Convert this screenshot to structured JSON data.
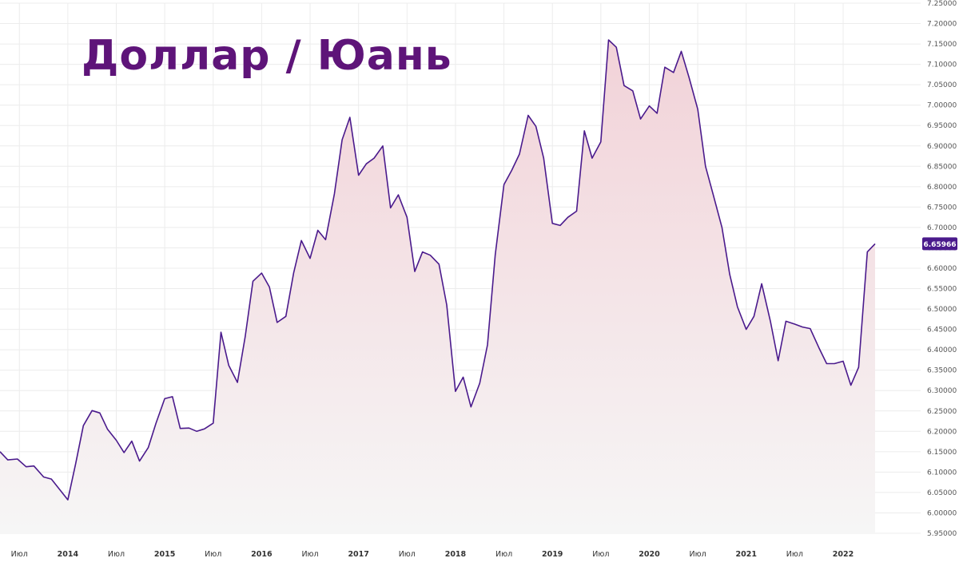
{
  "title": "Доллар / Юань",
  "colors": {
    "title": "#5e1479",
    "line": "#4a1a8c",
    "fill_top": "#f2d2d8",
    "fill_bottom": "#f6f6f6",
    "grid": "#ececec",
    "badge": "#4a1a8c"
  },
  "chart_data": {
    "type": "area",
    "title": "Доллар / Юань",
    "xlabel": "",
    "ylabel": "",
    "ylim": [
      5.95,
      7.25
    ],
    "xlim": [
      2013.3,
      2022.8
    ],
    "grid": true,
    "y_axis_side": "right",
    "y_ticks": [
      "5.95000",
      "6.00000",
      "6.05000",
      "6.10000",
      "6.15000",
      "6.20000",
      "6.25000",
      "6.30000",
      "6.35000",
      "6.40000",
      "6.45000",
      "6.50000",
      "6.55000",
      "6.60000",
      "6.65000",
      "6.70000",
      "6.75000",
      "6.80000",
      "6.85000",
      "6.90000",
      "6.95000",
      "7.00000",
      "7.05000",
      "7.10000",
      "7.15000",
      "7.20000",
      "7.25000"
    ],
    "x_ticks": [
      {
        "label": "Июл",
        "x": 2013.5,
        "year": false
      },
      {
        "label": "2014",
        "x": 2014.0,
        "year": true
      },
      {
        "label": "Июл",
        "x": 2014.5,
        "year": false
      },
      {
        "label": "2015",
        "x": 2015.0,
        "year": true
      },
      {
        "label": "Июл",
        "x": 2015.5,
        "year": false
      },
      {
        "label": "2016",
        "x": 2016.0,
        "year": true
      },
      {
        "label": "Июл",
        "x": 2016.5,
        "year": false
      },
      {
        "label": "2017",
        "x": 2017.0,
        "year": true
      },
      {
        "label": "Июл",
        "x": 2017.5,
        "year": false
      },
      {
        "label": "2018",
        "x": 2018.0,
        "year": true
      },
      {
        "label": "Июл",
        "x": 2018.5,
        "year": false
      },
      {
        "label": "2019",
        "x": 2019.0,
        "year": true
      },
      {
        "label": "Июл",
        "x": 2019.5,
        "year": false
      },
      {
        "label": "2020",
        "x": 2020.0,
        "year": true
      },
      {
        "label": "Июл",
        "x": 2020.5,
        "year": false
      },
      {
        "label": "2021",
        "x": 2021.0,
        "year": true
      },
      {
        "label": "Июл",
        "x": 2021.5,
        "year": false
      },
      {
        "label": "2022",
        "x": 2022.0,
        "year": true
      }
    ],
    "last_value_label": "6.65966",
    "series": [
      {
        "points": [
          [
            2013.3,
            6.15
          ],
          [
            2013.38,
            6.13
          ],
          [
            2013.48,
            6.132
          ],
          [
            2013.57,
            6.113
          ],
          [
            2013.65,
            6.115
          ],
          [
            2013.75,
            6.088
          ],
          [
            2013.83,
            6.083
          ],
          [
            2014.0,
            6.032
          ],
          [
            2014.08,
            6.12
          ],
          [
            2014.16,
            6.214
          ],
          [
            2014.25,
            6.251
          ],
          [
            2014.33,
            6.245
          ],
          [
            2014.41,
            6.205
          ],
          [
            2014.5,
            6.178
          ],
          [
            2014.58,
            6.148
          ],
          [
            2014.66,
            6.176
          ],
          [
            2014.74,
            6.127
          ],
          [
            2014.83,
            6.16
          ],
          [
            2014.91,
            6.22
          ],
          [
            2015.0,
            6.28
          ],
          [
            2015.08,
            6.285
          ],
          [
            2015.16,
            6.207
          ],
          [
            2015.25,
            6.208
          ],
          [
            2015.33,
            6.2
          ],
          [
            2015.41,
            6.206
          ],
          [
            2015.5,
            6.22
          ],
          [
            2015.58,
            6.443
          ],
          [
            2015.66,
            6.362
          ],
          [
            2015.75,
            6.32
          ],
          [
            2015.83,
            6.432
          ],
          [
            2015.91,
            6.568
          ],
          [
            2016.0,
            6.588
          ],
          [
            2016.08,
            6.554
          ],
          [
            2016.16,
            6.467
          ],
          [
            2016.25,
            6.482
          ],
          [
            2016.33,
            6.588
          ],
          [
            2016.41,
            6.668
          ],
          [
            2016.5,
            6.624
          ],
          [
            2016.58,
            6.693
          ],
          [
            2016.66,
            6.67
          ],
          [
            2016.75,
            6.782
          ],
          [
            2016.83,
            6.915
          ],
          [
            2016.91,
            6.97
          ],
          [
            2017.0,
            6.828
          ],
          [
            2017.08,
            6.856
          ],
          [
            2017.16,
            6.87
          ],
          [
            2017.25,
            6.9
          ],
          [
            2017.33,
            6.748
          ],
          [
            2017.41,
            6.78
          ],
          [
            2017.5,
            6.725
          ],
          [
            2017.58,
            6.592
          ],
          [
            2017.66,
            6.64
          ],
          [
            2017.74,
            6.632
          ],
          [
            2017.83,
            6.61
          ],
          [
            2017.91,
            6.51
          ],
          [
            2018.0,
            6.298
          ],
          [
            2018.08,
            6.333
          ],
          [
            2018.16,
            6.26
          ],
          [
            2018.25,
            6.318
          ],
          [
            2018.33,
            6.412
          ],
          [
            2018.41,
            6.633
          ],
          [
            2018.5,
            6.805
          ],
          [
            2018.58,
            6.84
          ],
          [
            2018.66,
            6.88
          ],
          [
            2018.75,
            6.975
          ],
          [
            2018.83,
            6.948
          ],
          [
            2018.91,
            6.87
          ],
          [
            2019.0,
            6.71
          ],
          [
            2019.08,
            6.705
          ],
          [
            2019.16,
            6.725
          ],
          [
            2019.25,
            6.74
          ],
          [
            2019.33,
            6.937
          ],
          [
            2019.41,
            6.87
          ],
          [
            2019.5,
            6.91
          ],
          [
            2019.58,
            7.16
          ],
          [
            2019.66,
            7.142
          ],
          [
            2019.74,
            7.048
          ],
          [
            2019.83,
            7.035
          ],
          [
            2019.91,
            6.966
          ],
          [
            2020.0,
            6.998
          ],
          [
            2020.08,
            6.98
          ],
          [
            2020.16,
            7.093
          ],
          [
            2020.25,
            7.08
          ],
          [
            2020.33,
            7.132
          ],
          [
            2020.41,
            7.068
          ],
          [
            2020.5,
            6.99
          ],
          [
            2020.58,
            6.85
          ],
          [
            2020.66,
            6.78
          ],
          [
            2020.75,
            6.7
          ],
          [
            2020.83,
            6.585
          ],
          [
            2020.91,
            6.505
          ],
          [
            2021.0,
            6.45
          ],
          [
            2021.08,
            6.482
          ],
          [
            2021.16,
            6.562
          ],
          [
            2021.25,
            6.47
          ],
          [
            2021.33,
            6.373
          ],
          [
            2021.41,
            6.47
          ],
          [
            2021.5,
            6.463
          ],
          [
            2021.58,
            6.456
          ],
          [
            2021.66,
            6.452
          ],
          [
            2021.75,
            6.405
          ],
          [
            2021.83,
            6.366
          ],
          [
            2021.91,
            6.366
          ],
          [
            2022.0,
            6.372
          ],
          [
            2022.08,
            6.313
          ],
          [
            2022.16,
            6.357
          ],
          [
            2022.25,
            6.64
          ],
          [
            2022.33,
            6.66
          ]
        ]
      }
    ]
  }
}
